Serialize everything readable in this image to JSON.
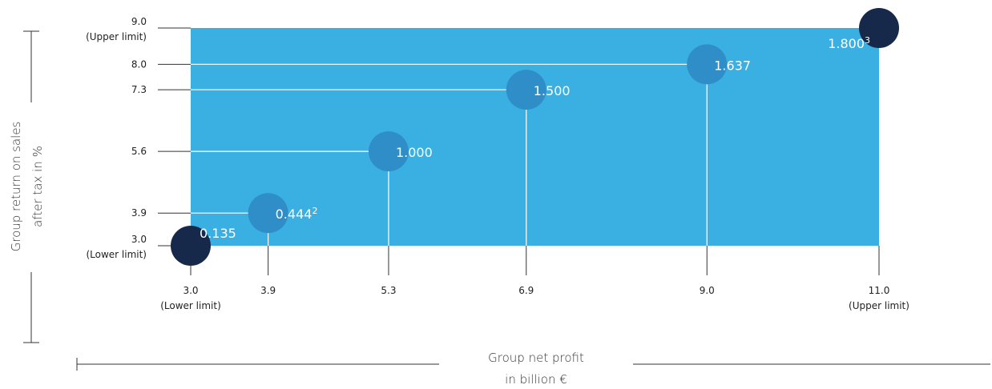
{
  "chart_data": {
    "type": "scatter",
    "xlabel": [
      "Group net profit",
      "in billion €"
    ],
    "ylabel": [
      "Group return on sales",
      "after tax in %"
    ],
    "xlim": [
      3.0,
      11.0
    ],
    "ylim": [
      3.0,
      9.0
    ],
    "x_ticks": [
      {
        "value": 3.0,
        "label": "3.0",
        "sub": "(Lower limit)"
      },
      {
        "value": 3.9,
        "label": "3.9",
        "sub": ""
      },
      {
        "value": 5.3,
        "label": "5.3",
        "sub": ""
      },
      {
        "value": 6.9,
        "label": "6.9",
        "sub": ""
      },
      {
        "value": 9.0,
        "label": "9.0",
        "sub": ""
      },
      {
        "value": 11.0,
        "label": "11.0",
        "sub": "(Upper limit)"
      }
    ],
    "y_ticks": [
      {
        "value": 9.0,
        "label": "9.0",
        "sub": "(Upper limit)"
      },
      {
        "value": 8.0,
        "label": "8.0",
        "sub": ""
      },
      {
        "value": 7.3,
        "label": "7.3",
        "sub": ""
      },
      {
        "value": 5.6,
        "label": "5.6",
        "sub": ""
      },
      {
        "value": 3.9,
        "label": "3.9",
        "sub": ""
      },
      {
        "value": 3.0,
        "label": "3.0",
        "sub": "(Lower limit)"
      }
    ],
    "points": [
      {
        "x": 3.0,
        "y": 3.0,
        "value": "0.135",
        "footnote": "",
        "limit": true
      },
      {
        "x": 3.9,
        "y": 3.9,
        "value": "0.444",
        "footnote": "2",
        "limit": false
      },
      {
        "x": 5.3,
        "y": 5.6,
        "value": "1.000",
        "footnote": "",
        "limit": false
      },
      {
        "x": 6.9,
        "y": 7.3,
        "value": "1.500",
        "footnote": "",
        "limit": false
      },
      {
        "x": 9.0,
        "y": 8.0,
        "value": "1.637",
        "footnote": "",
        "limit": false
      },
      {
        "x": 11.0,
        "y": 9.0,
        "value": "1.800",
        "footnote": "3",
        "limit": true
      }
    ],
    "colors": {
      "area": "#3aafe2",
      "point": "#2f8ec8",
      "limit_point": "#16294a",
      "line": "#ffffff",
      "axis": "#333333"
    }
  }
}
